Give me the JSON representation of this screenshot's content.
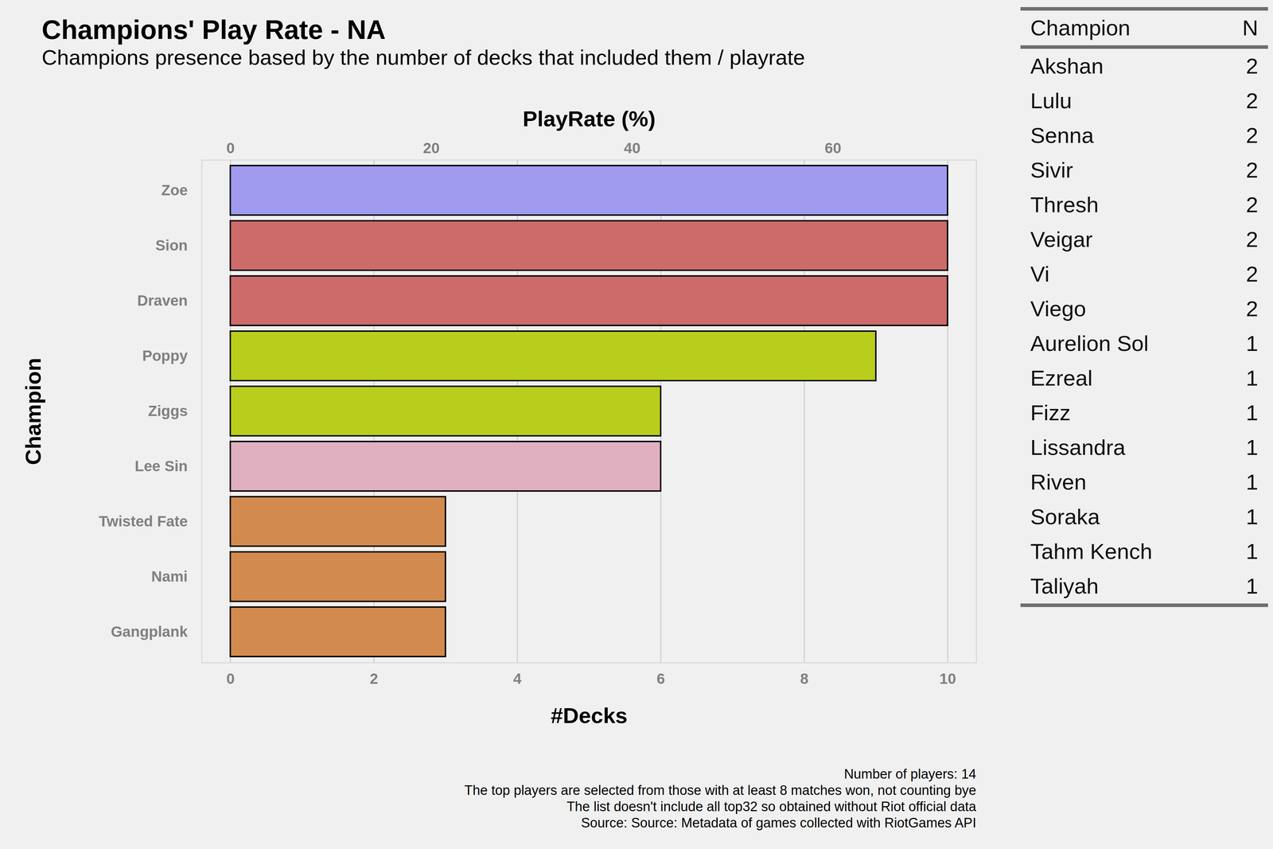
{
  "chart_data": {
    "type": "bar",
    "title": "Champions' Play Rate - NA",
    "subtitle": "Champions presence based by the number of decks that included them / playrate",
    "orientation": "horizontal",
    "xlabel": "#Decks",
    "ylabel": "Champion",
    "x2label": "PlayRate (%)",
    "categories": [
      "Zoe",
      "Sion",
      "Draven",
      "Poppy",
      "Ziggs",
      "Lee Sin",
      "Twisted Fate",
      "Nami",
      "Gangplank"
    ],
    "values": [
      10,
      10,
      10,
      9,
      6,
      6,
      3,
      3,
      3
    ],
    "colors": [
      "#a09bef",
      "#cd6b6b",
      "#cd6b6b",
      "#b9cd1c",
      "#b9cd1c",
      "#e0b0c0",
      "#d38a4e",
      "#d38a4e",
      "#d38a4e"
    ],
    "xlim": [
      -0.4,
      10.4
    ],
    "xticks": [
      0,
      2,
      4,
      6,
      8,
      10
    ],
    "x2lim": [
      -2.857,
      74.286
    ],
    "x2ticks": [
      0,
      20,
      40,
      60
    ],
    "grid": true,
    "annotations": [
      "Number of players: 14",
      "The top players are selected from those with at least 8 matches won, not counting bye",
      "The list doesn't include all top32 so obtained without Riot official data",
      "Source: Source: Metadata of games collected with RiotGames API"
    ]
  },
  "table": {
    "header": [
      "Champion",
      "N"
    ],
    "rows": [
      [
        "Akshan",
        2
      ],
      [
        "Lulu",
        2
      ],
      [
        "Senna",
        2
      ],
      [
        "Sivir",
        2
      ],
      [
        "Thresh",
        2
      ],
      [
        "Veigar",
        2
      ],
      [
        "Vi",
        2
      ],
      [
        "Viego",
        2
      ],
      [
        "Aurelion Sol",
        1
      ],
      [
        "Ezreal",
        1
      ],
      [
        "Fizz",
        1
      ],
      [
        "Lissandra",
        1
      ],
      [
        "Riven",
        1
      ],
      [
        "Soraka",
        1
      ],
      [
        "Tahm Kench",
        1
      ],
      [
        "Taliyah",
        1
      ]
    ]
  }
}
